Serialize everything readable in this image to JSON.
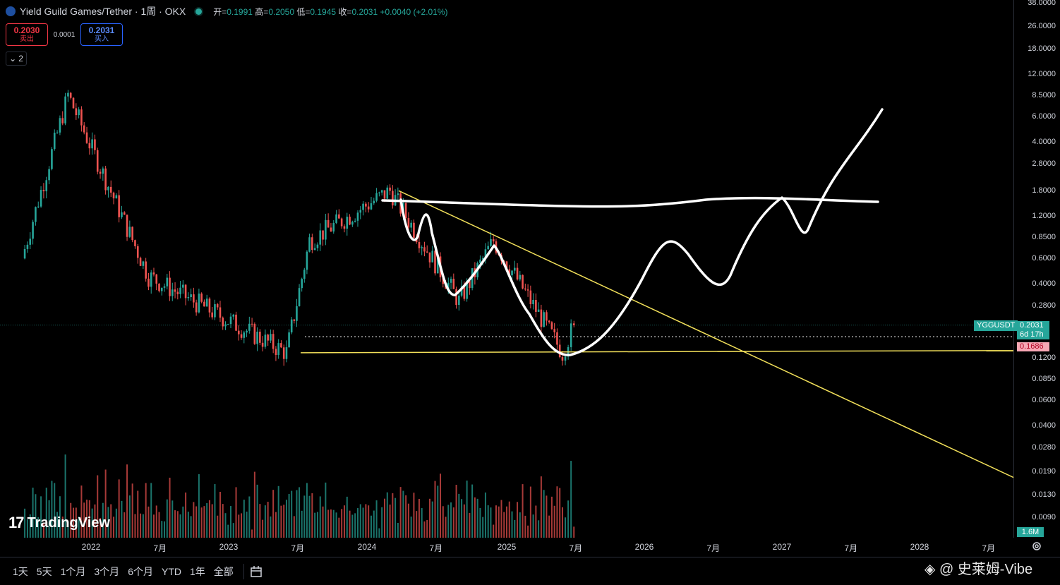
{
  "header": {
    "symbol": "Yield Guild Games/Tether · 1周 · OKX",
    "ohlc": [
      {
        "label": "开=",
        "value": "0.1991"
      },
      {
        "label": "高=",
        "value": "0.2050"
      },
      {
        "label": "低=",
        "value": "0.1945"
      },
      {
        "label": "收=",
        "value": "0.2031"
      }
    ],
    "change": "+0.0040 (+2.01%)"
  },
  "trade": {
    "sell_price": "0.2030",
    "sell_label": "卖出",
    "spread": "0.0001",
    "buy_price": "0.2031",
    "buy_label": "买入"
  },
  "collapse": {
    "label": "2"
  },
  "price_axis": {
    "ticks": [
      "38.0000",
      "26.0000",
      "18.0000",
      "12.0000",
      "8.5000",
      "6.0000",
      "4.0000",
      "2.8000",
      "1.8000",
      "1.2000",
      "0.8500",
      "0.6000",
      "0.4000",
      "0.2800",
      "0.1200",
      "0.0850",
      "0.0600",
      "0.0400",
      "0.0280",
      "0.0190",
      "0.0130",
      "0.0090"
    ],
    "symbol_badge": "YGGUSDT",
    "price_badge": "0.2031",
    "countdown_badge": "6d 17h",
    "level_badge": "0.1686",
    "volume_badge": "1.6M"
  },
  "time_axis": [
    "2022",
    "7月",
    "2023",
    "7月",
    "2024",
    "7月",
    "2025",
    "7月",
    "2026",
    "7月",
    "2027",
    "7月",
    "2028",
    "7月"
  ],
  "range_buttons": [
    "1天",
    "5天",
    "1个月",
    "3个月",
    "6个月",
    "YTD",
    "1年",
    "全部"
  ],
  "watermark": {
    "logo": "17",
    "text": "TradingView"
  },
  "corner_watermark": "◈ @ 史莱姆-Vibe",
  "colors": {
    "up": "#26a69a",
    "down": "#ef5350",
    "trendline": "#f2e05a",
    "drawing": "#ffffff",
    "background": "#000000"
  },
  "chart_data": {
    "type": "candlestick",
    "timeframe": "weekly",
    "scale": "log",
    "last_price": 0.2031,
    "horizontal_level": 0.1686,
    "support_level": 0.13,
    "key_points": [
      {
        "date": "2021-07",
        "price": 0.6
      },
      {
        "date": "2021-11",
        "price": 8.5
      },
      {
        "date": "2022-06",
        "price": 0.45
      },
      {
        "date": "2023-06",
        "price": 0.13
      },
      {
        "date": "2023-08",
        "price": 0.8
      },
      {
        "date": "2024-03",
        "price": 1.8
      },
      {
        "date": "2024-09",
        "price": 0.3
      },
      {
        "date": "2024-12",
        "price": 0.8
      },
      {
        "date": "2025-06",
        "price": 0.13
      },
      {
        "date": "2025-07",
        "price": 0.2031
      }
    ]
  }
}
